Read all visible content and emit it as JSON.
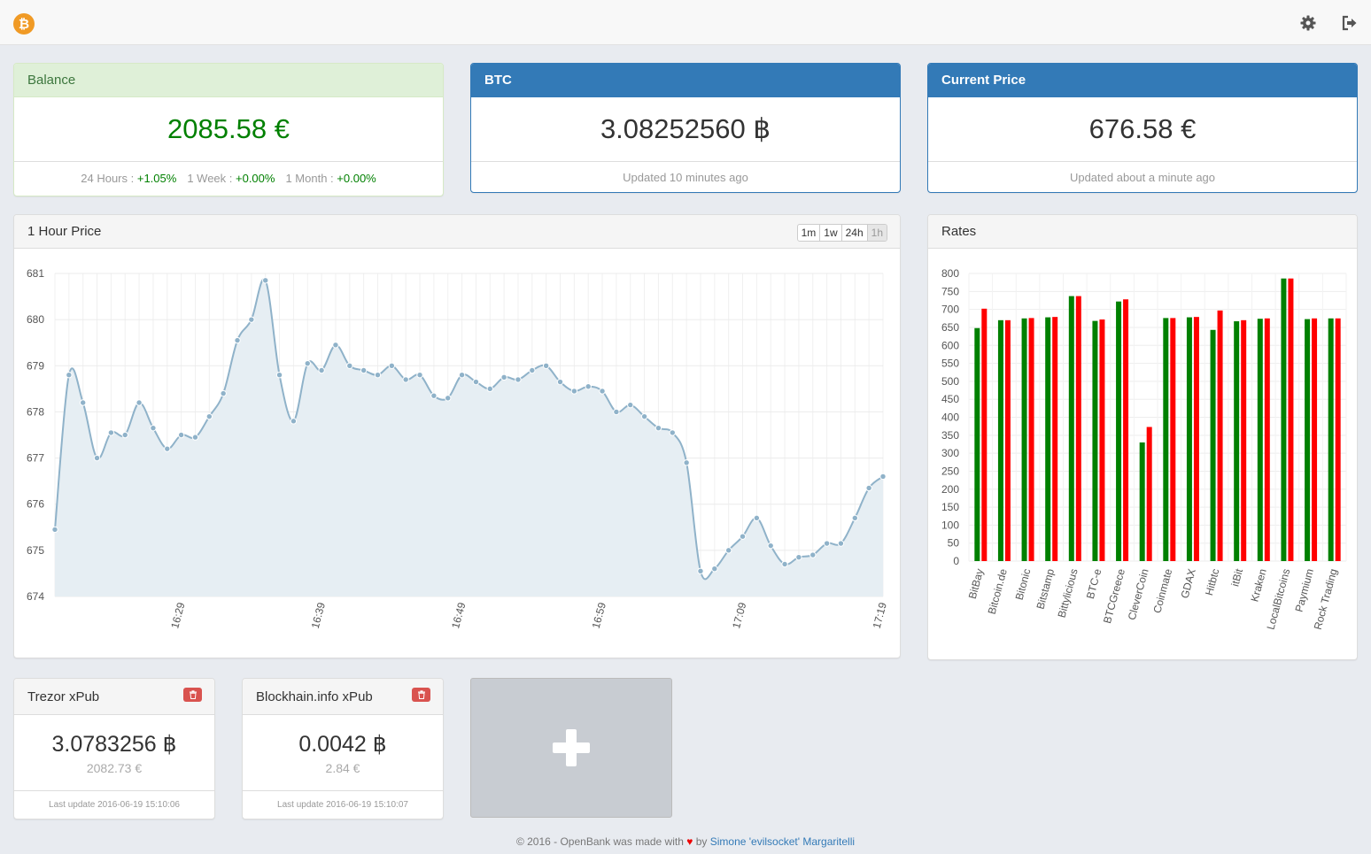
{
  "navbar": {
    "logo_glyph": "₿",
    "icons": [
      "gear-icon",
      "sign-out-icon"
    ]
  },
  "balance": {
    "title": "Balance",
    "value": "2085.58 €",
    "changes": [
      {
        "label": "24 Hours :",
        "value": "+1.05%"
      },
      {
        "label": "1 Week :",
        "value": "+0.00%"
      },
      {
        "label": "1 Month :",
        "value": "+0.00%"
      }
    ]
  },
  "btc": {
    "title": "BTC",
    "value": "3.08252560 ฿",
    "updated": "Updated 10 minutes ago"
  },
  "current_price": {
    "title": "Current Price",
    "value": "676.58 €",
    "updated": "Updated about a minute ago"
  },
  "price_chart": {
    "title": "1 Hour Price",
    "ranges": [
      "1m",
      "1w",
      "24h",
      "1h"
    ],
    "active_range": "1h"
  },
  "rates": {
    "title": "Rates"
  },
  "wallets": [
    {
      "title": "Trezor xPub",
      "btc": "3.0783256 ฿",
      "eur": "2082.73 €",
      "updated": "Last update 2016-06-19 15:10:06"
    },
    {
      "title": "Blockhain.info xPub",
      "btc": "0.0042 ฿",
      "eur": "2.84 €",
      "updated": "Last update 2016-06-19 15:10:07"
    }
  ],
  "footer": {
    "prefix": "© 2016 - OpenBank was made with",
    "heart": "♥",
    "by": "by",
    "author": "Simone 'evilsocket' Margaritelli"
  },
  "colors": {
    "primary": "#337ab7",
    "success_bg": "#dff0d8",
    "green": "#008000",
    "red": "#ff0000",
    "line": "#8fb2c9",
    "area": "#e6eef3"
  },
  "chart_data": [
    {
      "type": "area",
      "y_ticks": [
        674,
        675,
        676,
        677,
        678,
        679,
        680,
        681
      ],
      "ylim": [
        674,
        681
      ],
      "x_tick_labels": [
        "16:29",
        "16:39",
        "16:49",
        "16:59",
        "17:09",
        "17:19"
      ],
      "x_tick_positions": [
        9,
        19,
        29,
        39,
        49,
        59
      ],
      "values": [
        675.45,
        678.8,
        678.2,
        677.0,
        677.55,
        677.5,
        678.2,
        677.65,
        677.2,
        677.5,
        677.45,
        677.9,
        678.4,
        679.55,
        680.0,
        680.85,
        678.8,
        677.8,
        679.05,
        678.9,
        679.45,
        679.0,
        678.9,
        678.8,
        679.0,
        678.7,
        678.8,
        678.35,
        678.3,
        678.8,
        678.65,
        678.5,
        678.75,
        678.7,
        678.9,
        679.0,
        678.65,
        678.45,
        678.55,
        678.45,
        678.0,
        678.15,
        677.9,
        677.65,
        677.55,
        676.9,
        674.55,
        674.6,
        675.0,
        675.3,
        675.7,
        675.1,
        674.7,
        674.85,
        674.9,
        675.15,
        675.15,
        675.7,
        676.35,
        676.6
      ]
    },
    {
      "type": "bar",
      "categories": [
        "BitBay",
        "Bitcoin.de",
        "Bitonic",
        "Bitstamp",
        "Bittylicious",
        "BTC-e",
        "BTCGreece",
        "CleverCoin",
        "Coinmate",
        "GDAX",
        "Hitbtc",
        "itBit",
        "Kraken",
        "LocalBitcoins",
        "Paymium",
        "Rock Trading"
      ],
      "y_ticks": [
        0,
        50,
        100,
        150,
        200,
        250,
        300,
        350,
        400,
        450,
        500,
        550,
        600,
        650,
        700,
        750,
        800
      ],
      "ylim": [
        0,
        800
      ],
      "series": [
        {
          "color": "#008000",
          "values": [
            648,
            670,
            675,
            678,
            737,
            668,
            722,
            330,
            676,
            678,
            643,
            667,
            674,
            786,
            673,
            675
          ]
        },
        {
          "color": "#ff0000",
          "values": [
            702,
            670,
            676,
            679,
            737,
            672,
            728,
            373,
            676,
            679,
            697,
            670,
            675,
            786,
            675,
            675
          ]
        }
      ]
    }
  ]
}
